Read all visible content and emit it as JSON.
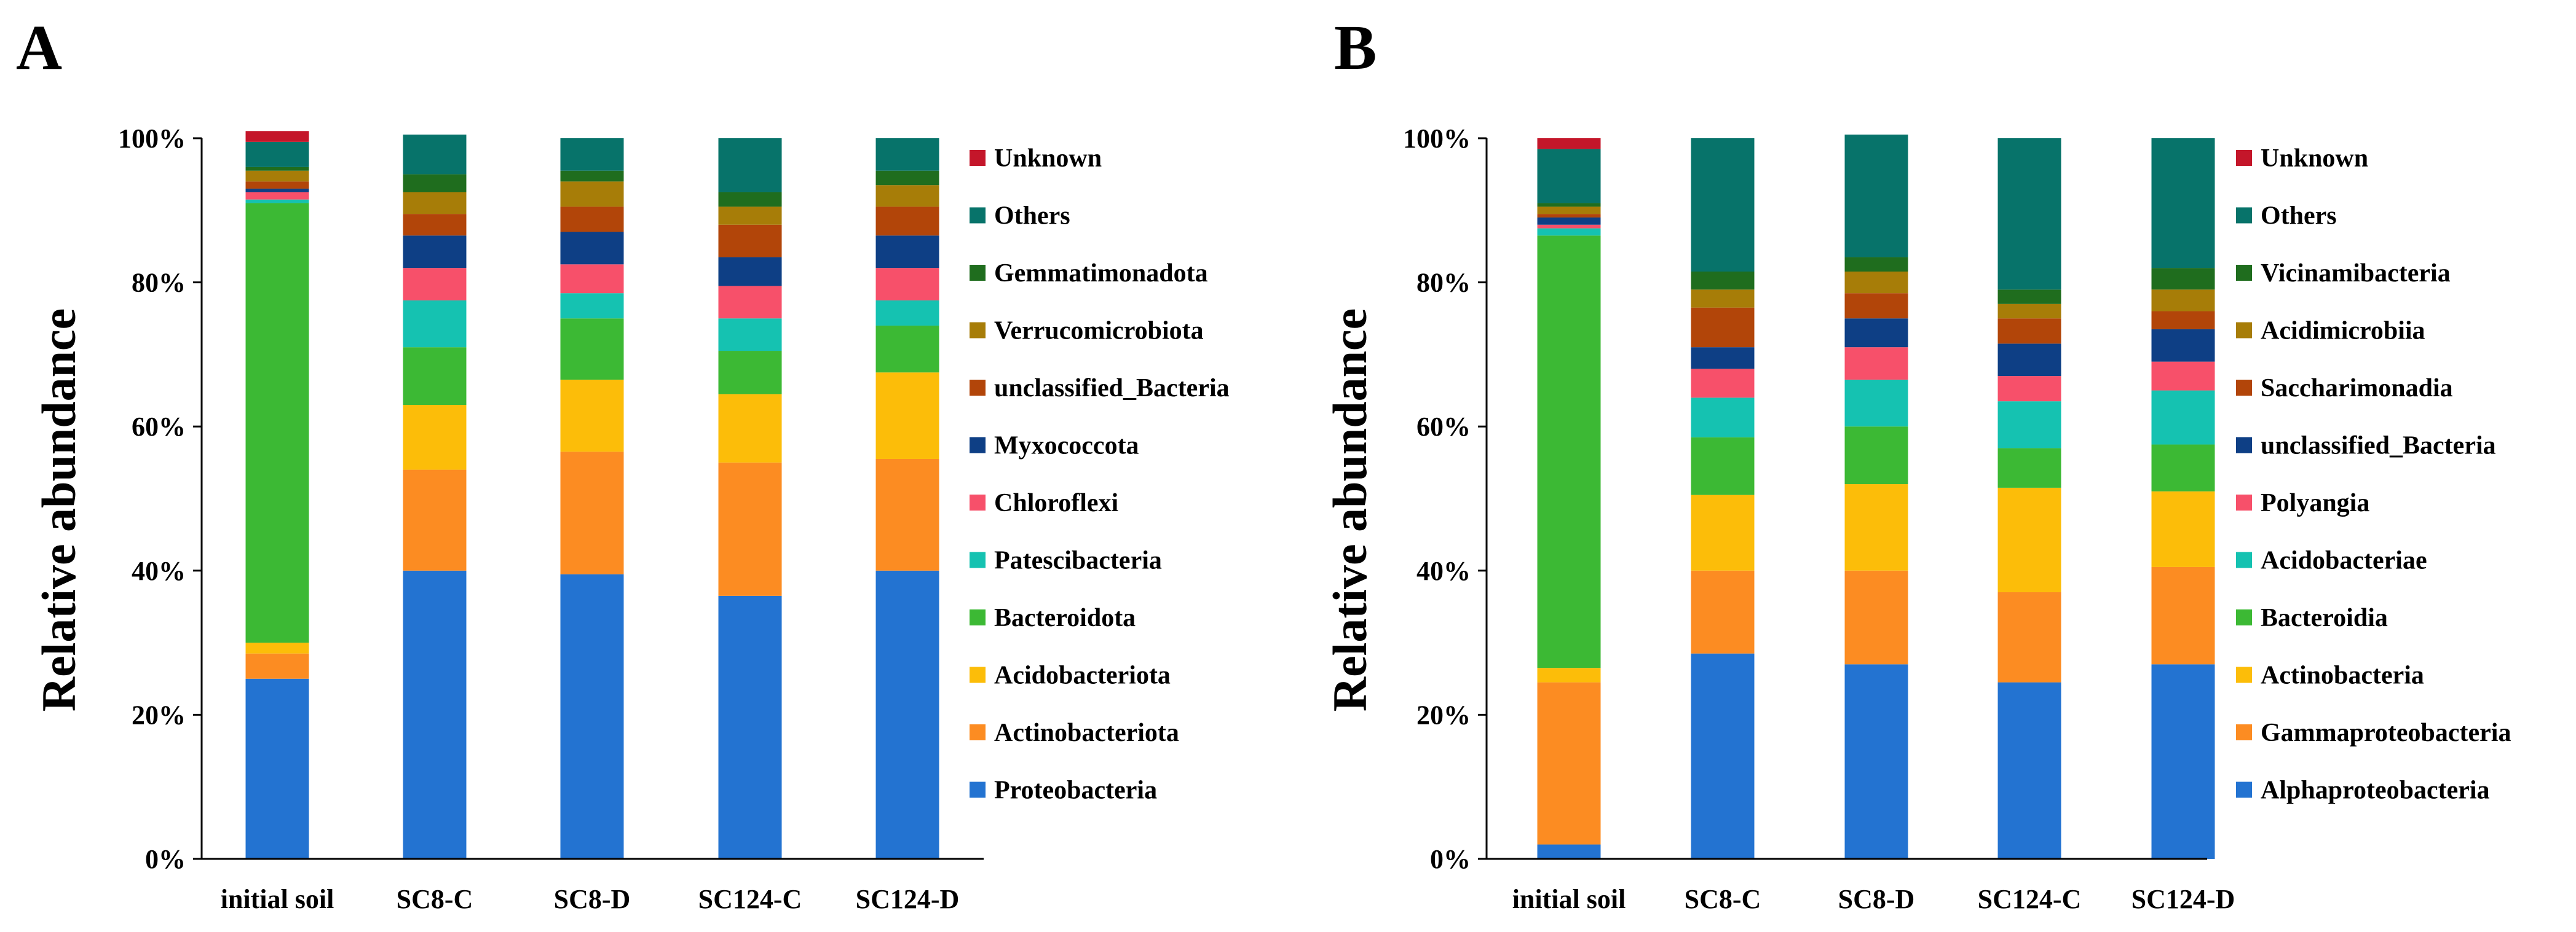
{
  "chart_data": [
    {
      "panel": "A",
      "type": "stacked-bar",
      "ylabel": "Relative abundance",
      "ylim": [
        0,
        100
      ],
      "y_ticks": [
        "0%",
        "20%",
        "40%",
        "60%",
        "80%",
        "100%"
      ],
      "categories": [
        "initial soil",
        "SC8-C",
        "SC8-D",
        "SC124-C",
        "SC124-D"
      ],
      "series": [
        {
          "name": "Proteobacteria",
          "color": "#2373D1",
          "values": [
            25,
            40,
            39.5,
            36.5,
            40
          ]
        },
        {
          "name": "Actinobacteriota",
          "color": "#FC8C22",
          "values": [
            3.5,
            14,
            17,
            18.5,
            15.5
          ]
        },
        {
          "name": "Acidobacteriota",
          "color": "#FCBD09",
          "values": [
            1.5,
            9,
            10,
            9.5,
            12
          ]
        },
        {
          "name": "Bacteroidota",
          "color": "#3CB934",
          "values": [
            61,
            8,
            8.5,
            6,
            6.5
          ]
        },
        {
          "name": "Patescibacteria",
          "color": "#15C2B1",
          "values": [
            0.5,
            6.5,
            3.5,
            4.5,
            3.5
          ]
        },
        {
          "name": "Chloroflexi",
          "color": "#F7506A",
          "values": [
            1,
            4.5,
            4,
            4.5,
            4.5
          ]
        },
        {
          "name": "Myxococcota",
          "color": "#0E3F85",
          "values": [
            0.5,
            4.5,
            4.5,
            4,
            4.5
          ]
        },
        {
          "name": "unclassified_Bacteria",
          "color": "#B24509",
          "values": [
            1,
            3,
            3.5,
            4.5,
            4
          ]
        },
        {
          "name": "Verrucomicrobiota",
          "color": "#A77D08",
          "values": [
            1.5,
            3,
            3.5,
            2.5,
            3
          ]
        },
        {
          "name": "Gemmatimonadota",
          "color": "#1F6D1E",
          "values": [
            0.5,
            2.5,
            1.5,
            2,
            2
          ]
        },
        {
          "name": "Others",
          "color": "#07736A",
          "values": [
            3.5,
            5.5,
            4.5,
            7.5,
            4.5
          ]
        },
        {
          "name": "Unknown",
          "color": "#C4162A",
          "values": [
            1.5,
            0,
            0,
            0,
            0
          ]
        }
      ]
    },
    {
      "panel": "B",
      "type": "stacked-bar",
      "ylabel": "Relative abundance",
      "ylim": [
        0,
        100
      ],
      "y_ticks": [
        "0%",
        "20%",
        "40%",
        "60%",
        "80%",
        "100%"
      ],
      "categories": [
        "initial soil",
        "SC8-C",
        "SC8-D",
        "SC124-C",
        "SC124-D"
      ],
      "series": [
        {
          "name": "Alphaproteobacteria",
          "color": "#2373D1",
          "values": [
            2,
            28.5,
            27,
            24.5,
            27
          ]
        },
        {
          "name": "Gammaproteobacteria",
          "color": "#FC8C22",
          "values": [
            22.5,
            11.5,
            13,
            12.5,
            13.5
          ]
        },
        {
          "name": "Actinobacteria",
          "color": "#FCBD09",
          "values": [
            2,
            10.5,
            12,
            14.5,
            10.5
          ]
        },
        {
          "name": "Bacteroidia",
          "color": "#3CB934",
          "values": [
            60,
            8,
            8,
            5.5,
            6.5
          ]
        },
        {
          "name": "Acidobacteriae",
          "color": "#15C2B1",
          "values": [
            1,
            5.5,
            6.5,
            6.5,
            7.5
          ]
        },
        {
          "name": "Polyangia",
          "color": "#F7506A",
          "values": [
            0.5,
            4,
            4.5,
            3.5,
            4
          ]
        },
        {
          "name": "unclassified_Bacteria",
          "color": "#0E3F85",
          "values": [
            1,
            3,
            4,
            4.5,
            4.5
          ]
        },
        {
          "name": "Saccharimonadia",
          "color": "#B24509",
          "values": [
            0.5,
            5.5,
            3.5,
            3.5,
            2.5
          ]
        },
        {
          "name": "Acidimicrobiia",
          "color": "#A77D08",
          "values": [
            1,
            2.5,
            3,
            2,
            3
          ]
        },
        {
          "name": "Vicinamibacteria",
          "color": "#1F6D1E",
          "values": [
            0.5,
            2.5,
            2,
            2,
            3
          ]
        },
        {
          "name": "Others",
          "color": "#07736A",
          "values": [
            7.5,
            18.5,
            17,
            21,
            18
          ]
        },
        {
          "name": "Unknown",
          "color": "#C4162A",
          "values": [
            1.5,
            0,
            0,
            0,
            0
          ]
        }
      ]
    }
  ]
}
